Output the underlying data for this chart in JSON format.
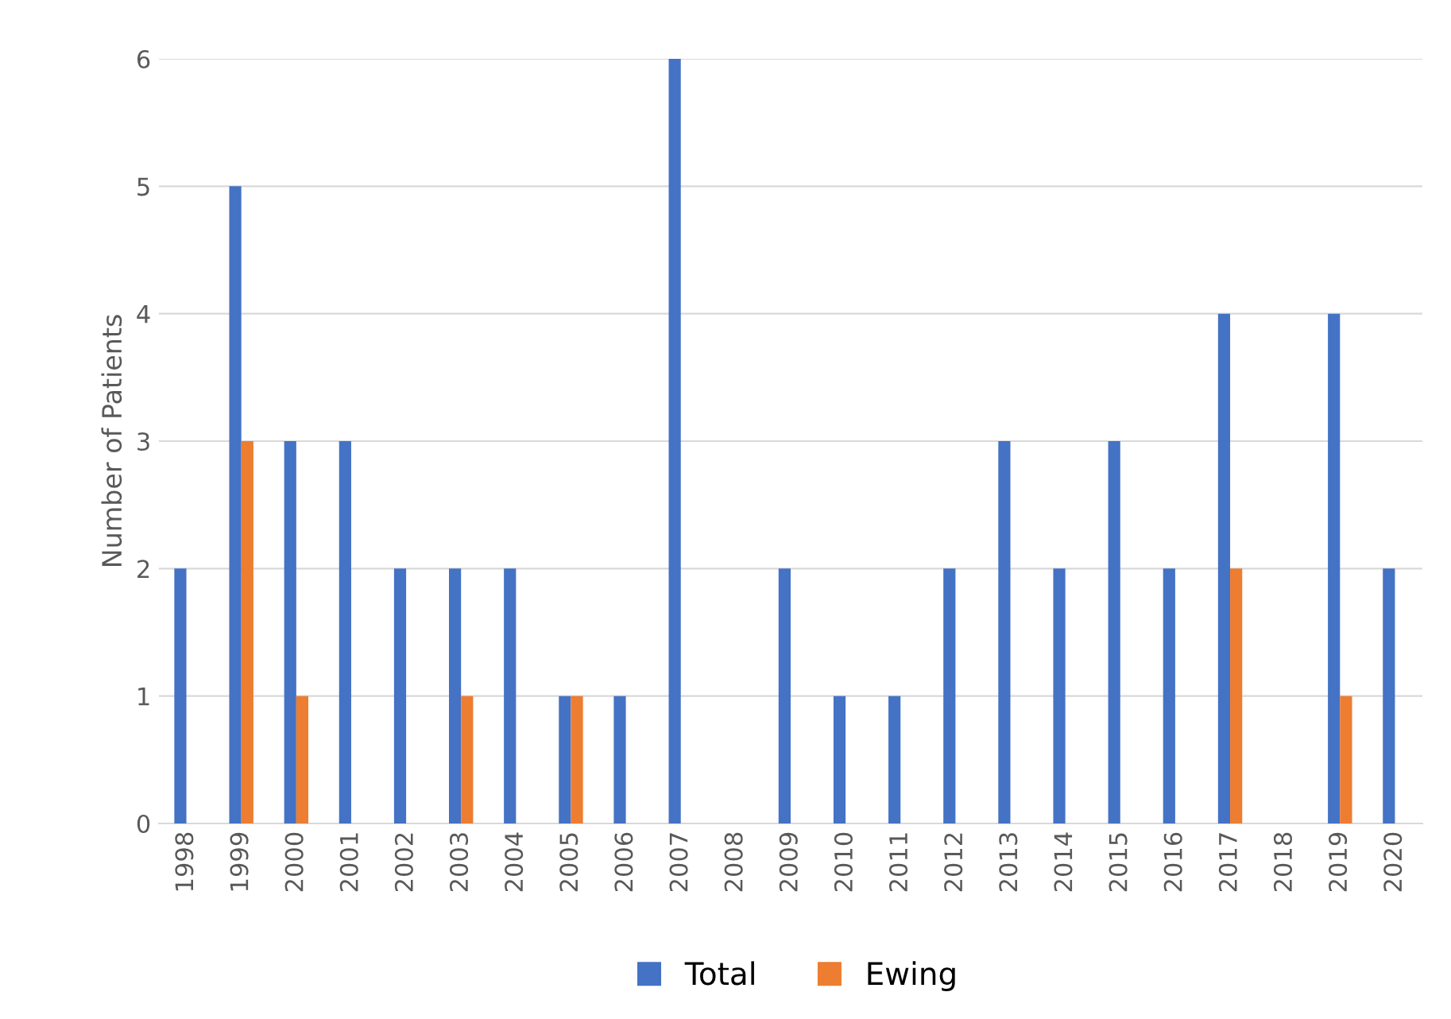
{
  "chart_data": {
    "type": "bar",
    "ylabel": "Number of Patients",
    "categories": [
      "1998",
      "1999",
      "2000",
      "2001",
      "2002",
      "2003",
      "2004",
      "2005",
      "2006",
      "2007",
      "2008",
      "2009",
      "2010",
      "2011",
      "2012",
      "2013",
      "2014",
      "2015",
      "2016",
      "2017",
      "2018",
      "2019",
      "2020"
    ],
    "series": [
      {
        "name": "Total",
        "color": "#4472c4",
        "values": [
          2,
          5,
          3,
          3,
          2,
          2,
          2,
          1,
          1,
          6,
          0,
          2,
          1,
          1,
          2,
          3,
          2,
          3,
          2,
          4,
          0,
          4,
          2
        ]
      },
      {
        "name": "Ewing",
        "color": "#ed7d31",
        "values": [
          0,
          3,
          1,
          0,
          0,
          1,
          0,
          1,
          0,
          0,
          0,
          0,
          0,
          0,
          0,
          0,
          0,
          0,
          0,
          2,
          0,
          1,
          0
        ]
      }
    ],
    "ylim": [
      0,
      6
    ],
    "yticks": [
      0,
      1,
      2,
      3,
      4,
      5,
      6
    ],
    "grid": "y",
    "legend": "bottom"
  }
}
